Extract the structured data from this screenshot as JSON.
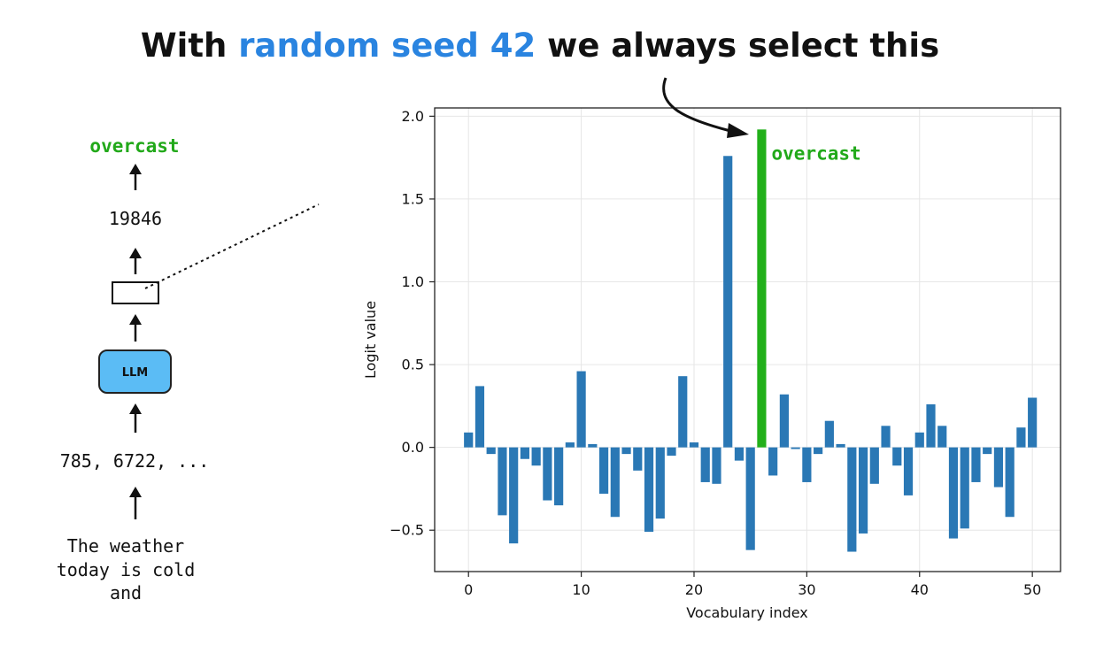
{
  "headline": {
    "prefix": "With ",
    "highlight": "random seed 42",
    "suffix": " we always select this",
    "highlight_color": "#2a84e0"
  },
  "pipeline": {
    "input_text": [
      "The weather",
      "today is cold",
      "and"
    ],
    "token_ids": "785, 6722, ...",
    "model_label": "LLM",
    "model_color": "#5bbcf5",
    "selected_id": "19846",
    "output_token": "overcast",
    "output_color": "#22a91a"
  },
  "chart_data": {
    "type": "bar",
    "xlabel": "Vocabulary index",
    "ylabel": "Logit value",
    "xlim": [
      -3,
      52.5
    ],
    "ylim": [
      -0.75,
      2.05
    ],
    "xticks": [
      0,
      10,
      20,
      30,
      40,
      50
    ],
    "yticks": [
      -0.5,
      0.0,
      0.5,
      1.0,
      1.5,
      2.0
    ],
    "ytick_labels": [
      "−0.5",
      "0.0",
      "0.5",
      "1.0",
      "1.5",
      "2.0"
    ],
    "grid": true,
    "bar_color": "#2a78b5",
    "highlight_color": "#22b01a",
    "highlight_index": 26,
    "highlight_label": "overcast",
    "x": [
      0,
      1,
      2,
      3,
      4,
      5,
      6,
      7,
      8,
      9,
      10,
      11,
      12,
      13,
      14,
      15,
      16,
      17,
      18,
      19,
      20,
      21,
      22,
      23,
      24,
      25,
      26,
      27,
      28,
      29,
      30,
      31,
      32,
      33,
      34,
      35,
      36,
      37,
      38,
      39,
      40,
      41,
      42,
      43,
      44,
      45,
      46,
      47,
      48,
      49,
      50
    ],
    "values": [
      0.09,
      0.37,
      -0.04,
      -0.41,
      -0.58,
      -0.07,
      -0.11,
      -0.32,
      -0.35,
      0.03,
      0.46,
      0.02,
      -0.28,
      -0.42,
      -0.04,
      -0.14,
      -0.51,
      -0.43,
      -0.05,
      0.43,
      0.03,
      -0.21,
      -0.22,
      1.76,
      -0.08,
      -0.62,
      1.92,
      -0.17,
      0.32,
      -0.01,
      -0.21,
      -0.04,
      0.16,
      0.02,
      -0.63,
      -0.52,
      -0.22,
      0.13,
      -0.11,
      -0.29,
      0.09,
      0.26,
      0.13,
      -0.55,
      -0.49,
      -0.21,
      -0.04,
      -0.24,
      -0.42,
      0.12,
      0.3
    ]
  }
}
